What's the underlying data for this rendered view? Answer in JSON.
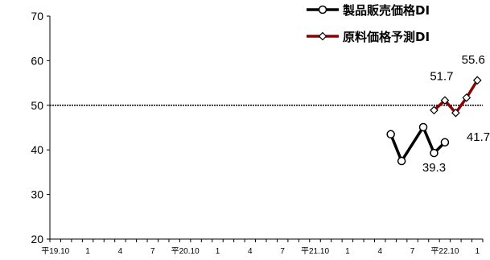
{
  "chart_data": {
    "type": "line",
    "ylim": [
      20,
      70
    ],
    "y_ticks": [
      20,
      30,
      40,
      50,
      60,
      70
    ],
    "x_tick_labels": [
      "平19.10",
      "1",
      "4",
      "7",
      "平20.10",
      "1",
      "4",
      "7",
      "平21.10",
      "1",
      "4",
      "7",
      "平22.10",
      "1"
    ],
    "reference_line": 50,
    "series": [
      {
        "name": "製品販売価格DI",
        "color": "#000000",
        "marker": "circle",
        "points": [
          {
            "x": "平22.5",
            "y": 43.5
          },
          {
            "x": "平22.6",
            "y": 37.5
          },
          {
            "x": "平22.8",
            "y": 45.1
          },
          {
            "x": "平22.9",
            "y": 39.3
          },
          {
            "x": "平22.10",
            "y": 41.7
          }
        ]
      },
      {
        "name": "原料価格予測DI",
        "color": "#8b0000",
        "marker": "diamond",
        "points": [
          {
            "x": "平22.9",
            "y": 48.9
          },
          {
            "x": "平22.10",
            "y": 51.1
          },
          {
            "x": "平22.11",
            "y": 48.3
          },
          {
            "x": "平22.12",
            "y": 51.7
          },
          {
            "x": "平23.1",
            "y": 55.6
          }
        ]
      }
    ],
    "data_labels": [
      "39.3",
      "41.7",
      "51.7",
      "55.6"
    ]
  }
}
